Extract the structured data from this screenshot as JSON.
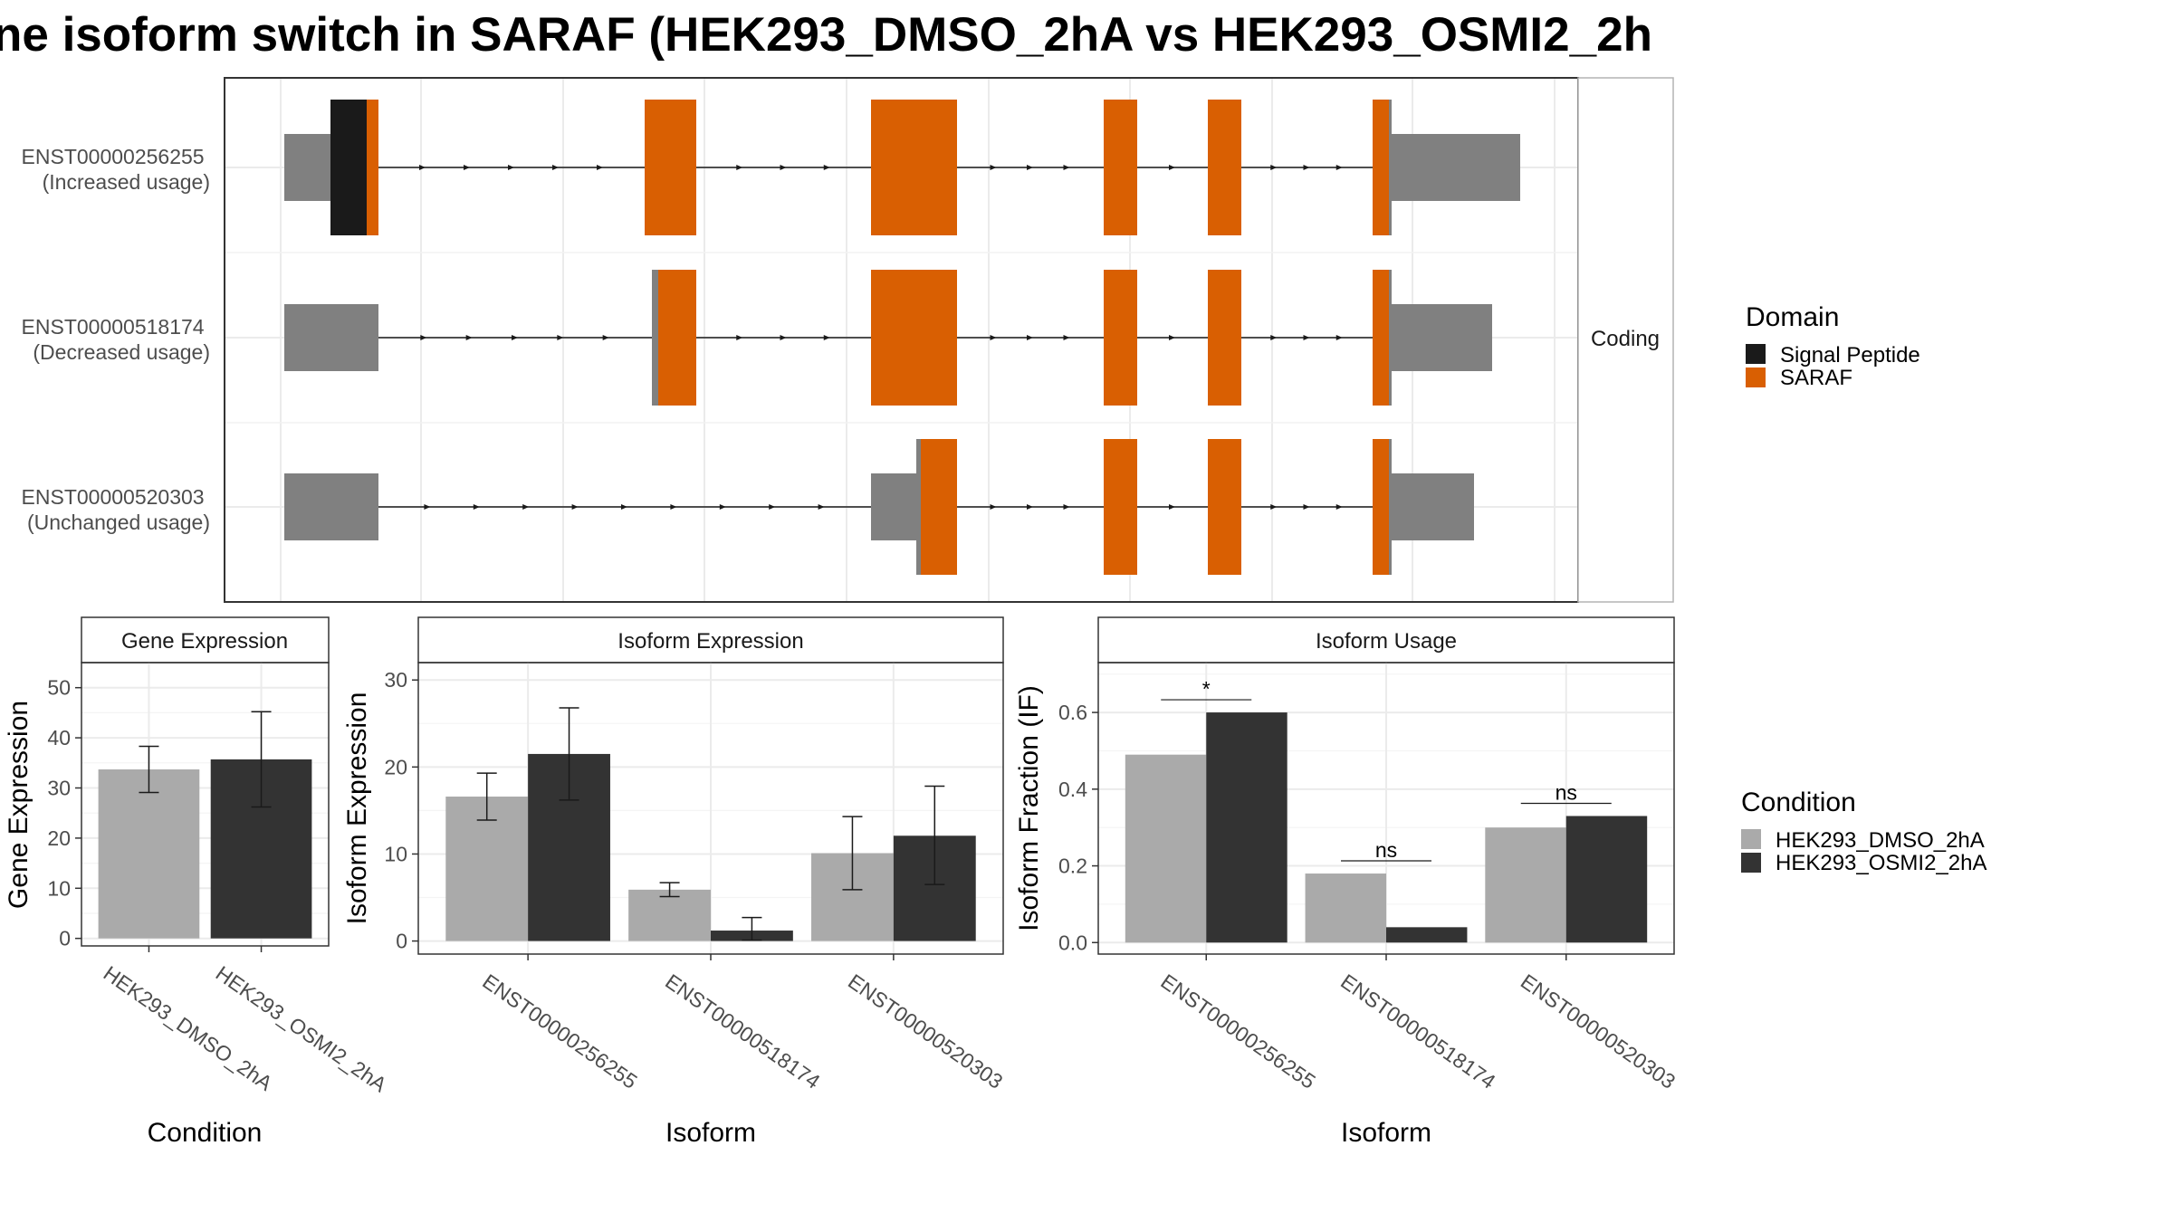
{
  "title": "ne isoform switch in SARAF (HEK293_DMSO_2hA vs HEK293_OSMI2_2h",
  "colors": {
    "utr": "#808080",
    "signal_peptide": "#1a1a1a",
    "saraf": "#D95F02",
    "dmso": "#AAAAAA",
    "osmi2": "#333333"
  },
  "structure": {
    "facet_label": "Coding",
    "transcripts": [
      {
        "id": "ENST00000256255",
        "note": "(Increased usage)"
      },
      {
        "id": "ENST00000518174",
        "note": "(Decreased usage)"
      },
      {
        "id": "ENST00000520303",
        "note": "(Unchanged usage)"
      }
    ],
    "domain_legend": {
      "title": "Domain",
      "items": [
        "Signal Peptide",
        "SARAF"
      ]
    }
  },
  "condition_legend": {
    "title": "Condition",
    "items": [
      "HEK293_DMSO_2hA",
      "HEK293_OSMI2_2hA"
    ]
  },
  "chart_data": [
    {
      "type": "bar",
      "title": "Gene Expression",
      "xlabel": "Condition",
      "ylabel": "Gene Expression",
      "categories": [
        "HEK293_DMSO_2hA",
        "HEK293_OSMI2_2hA"
      ],
      "values": [
        33.7,
        35.7
      ],
      "error_low": [
        29.1,
        26.2
      ],
      "error_high": [
        38.3,
        45.2
      ],
      "yticks": [
        0,
        10,
        20,
        30,
        40,
        50
      ],
      "ylim": [
        -1.5,
        55
      ]
    },
    {
      "type": "bar",
      "title": "Isoform Expression",
      "xlabel": "Isoform",
      "ylabel": "Isoform Expression",
      "categories": [
        "ENST00000256255",
        "ENST00000518174",
        "ENST00000520303"
      ],
      "series": [
        {
          "name": "HEK293_DMSO_2hA",
          "values": [
            16.6,
            5.9,
            10.1
          ],
          "error_low": [
            13.9,
            5.1,
            5.9
          ],
          "error_high": [
            19.3,
            6.7,
            14.3
          ]
        },
        {
          "name": "HEK293_OSMI2_2hA",
          "values": [
            21.5,
            1.2,
            12.1
          ],
          "error_low": [
            16.2,
            0.1,
            6.5
          ],
          "error_high": [
            26.8,
            2.7,
            17.8
          ]
        }
      ],
      "yticks": [
        0,
        10,
        20,
        30
      ],
      "ylim": [
        -1.5,
        32
      ]
    },
    {
      "type": "bar",
      "title": "Isoform Usage",
      "xlabel": "Isoform",
      "ylabel": "Isoform Fraction (IF)",
      "categories": [
        "ENST00000256255",
        "ENST00000518174",
        "ENST00000520303"
      ],
      "series": [
        {
          "name": "HEK293_DMSO_2hA",
          "values": [
            0.49,
            0.18,
            0.3
          ]
        },
        {
          "name": "HEK293_OSMI2_2hA",
          "values": [
            0.6,
            0.04,
            0.33
          ]
        }
      ],
      "significance": [
        "*",
        "ns",
        "ns"
      ],
      "yticks": [
        "0.0",
        "0.2",
        "0.4",
        "0.6"
      ],
      "ylim": [
        -0.03,
        0.73
      ]
    }
  ]
}
